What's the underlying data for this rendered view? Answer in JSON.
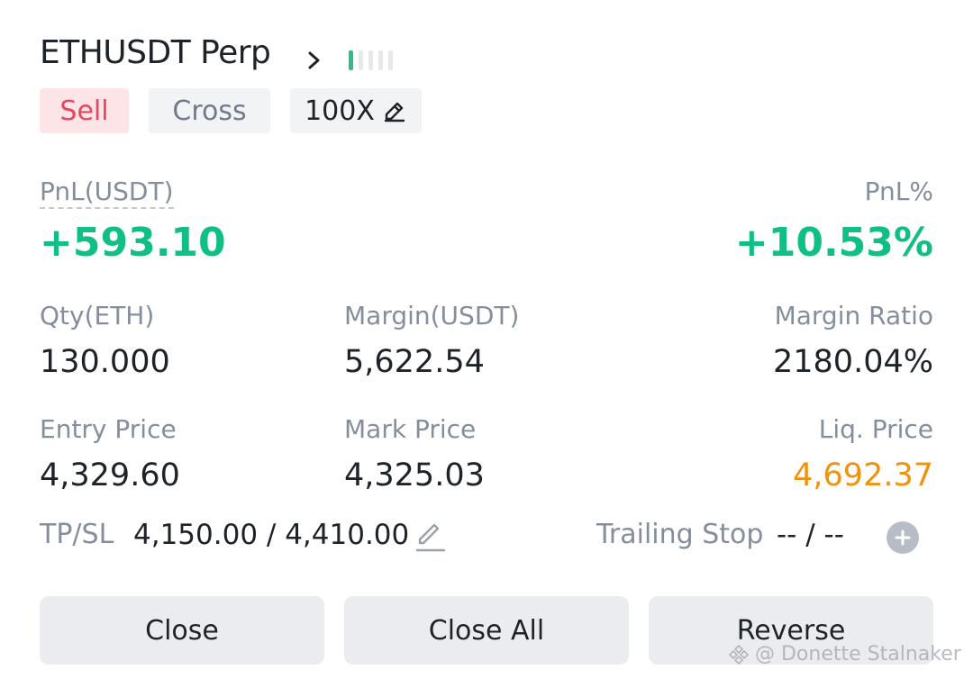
{
  "header": {
    "symbol": "ETHUSDT Perp",
    "adl_level": 1,
    "adl_total": 5
  },
  "tags": {
    "side": "Sell",
    "margin_mode": "Cross",
    "leverage": "100X"
  },
  "pnl": {
    "label": "PnL(USDT)",
    "value": "+593.10",
    "percent_label": "PnL%",
    "percent_value": "+10.53%"
  },
  "stats": {
    "qty_label": "Qty(ETH)",
    "qty_value": "130.000",
    "margin_label": "Margin(USDT)",
    "margin_value": "5,622.54",
    "margin_ratio_label": "Margin Ratio",
    "margin_ratio_value": "2180.04%",
    "entry_label": "Entry Price",
    "entry_value": "4,329.60",
    "mark_label": "Mark Price",
    "mark_value": "4,325.03",
    "liq_label": "Liq. Price",
    "liq_value": "4,692.37"
  },
  "tpsl": {
    "label": "TP/SL",
    "value": "4,150.00 / 4,410.00"
  },
  "trailing": {
    "label": "Trailing Stop",
    "value": "-- / --"
  },
  "buttons": {
    "close": "Close",
    "close_all": "Close All",
    "reverse": "Reverse"
  },
  "watermark": "@ Donette Stalnaker",
  "colors": {
    "profit_green": "#0fbf84",
    "sell_red": "#e8465d",
    "liq_orange": "#f0920c"
  },
  "icons": {
    "header_arrow": "chevron-right-icon",
    "leverage_edit": "pencil-icon",
    "tpsl_edit": "edit-icon",
    "trailing_add": "plus-circle-icon"
  }
}
